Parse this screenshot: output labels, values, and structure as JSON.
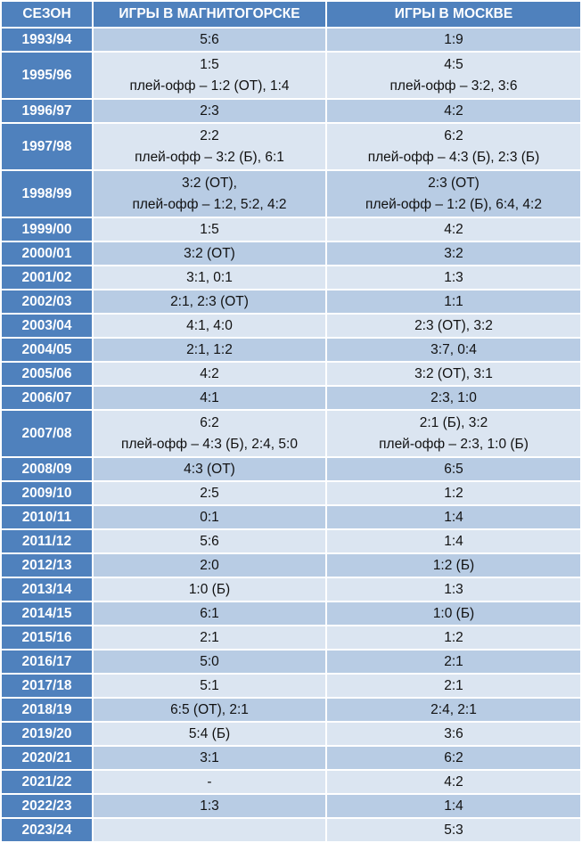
{
  "table": {
    "header": [
      "СЕЗОН",
      "ИГРЫ В МАГНИТОГОРСКЕ",
      "ИГРЫ В МОСКВЕ"
    ],
    "rows": [
      [
        "1993/94",
        [
          "5:6"
        ],
        [
          "1:9"
        ]
      ],
      [
        "1995/96",
        [
          "1:5",
          "плей-офф – 1:2 (ОТ), 1:4"
        ],
        [
          "4:5",
          "плей-офф – 3:2, 3:6"
        ]
      ],
      [
        "1996/97",
        [
          "2:3"
        ],
        [
          "4:2"
        ]
      ],
      [
        "1997/98",
        [
          "2:2",
          "плей-офф – 3:2 (Б), 6:1"
        ],
        [
          "6:2",
          "плей-офф – 4:3 (Б), 2:3 (Б)"
        ]
      ],
      [
        "1998/99",
        [
          "3:2 (ОТ),",
          "плей-офф – 1:2, 5:2, 4:2"
        ],
        [
          "2:3 (ОТ)",
          "плей-офф – 1:2 (Б), 6:4, 4:2"
        ]
      ],
      [
        "1999/00",
        [
          "1:5"
        ],
        [
          "4:2"
        ]
      ],
      [
        "2000/01",
        [
          "3:2 (ОТ)"
        ],
        [
          "3:2"
        ]
      ],
      [
        "2001/02",
        [
          "3:1, 0:1"
        ],
        [
          "1:3"
        ]
      ],
      [
        "2002/03",
        [
          "2:1, 2:3 (ОТ)"
        ],
        [
          "1:1"
        ]
      ],
      [
        "2003/04",
        [
          "4:1, 4:0"
        ],
        [
          "2:3 (ОТ), 3:2"
        ]
      ],
      [
        "2004/05",
        [
          "2:1, 1:2"
        ],
        [
          "3:7, 0:4"
        ]
      ],
      [
        "2005/06",
        [
          "4:2"
        ],
        [
          "3:2 (ОТ), 3:1"
        ]
      ],
      [
        "2006/07",
        [
          "4:1"
        ],
        [
          "2:3, 1:0"
        ]
      ],
      [
        "2007/08",
        [
          "6:2",
          "плей-офф – 4:3 (Б), 2:4, 5:0"
        ],
        [
          "2:1 (Б), 3:2",
          "плей-офф – 2:3, 1:0 (Б)"
        ]
      ],
      [
        "2008/09",
        [
          "4:3 (ОТ)"
        ],
        [
          "6:5"
        ]
      ],
      [
        "2009/10",
        [
          "2:5"
        ],
        [
          "1:2"
        ]
      ],
      [
        "2010/11",
        [
          "0:1"
        ],
        [
          "1:4"
        ]
      ],
      [
        "2011/12",
        [
          "5:6"
        ],
        [
          "1:4"
        ]
      ],
      [
        "2012/13",
        [
          "2:0"
        ],
        [
          "1:2 (Б)"
        ]
      ],
      [
        "2013/14",
        [
          "1:0 (Б)"
        ],
        [
          "1:3"
        ]
      ],
      [
        "2014/15",
        [
          "6:1"
        ],
        [
          "1:0 (Б)"
        ]
      ],
      [
        "2015/16",
        [
          "2:1"
        ],
        [
          "1:2"
        ]
      ],
      [
        "2016/17",
        [
          "5:0"
        ],
        [
          "2:1"
        ]
      ],
      [
        "2017/18",
        [
          "5:1"
        ],
        [
          "2:1"
        ]
      ],
      [
        "2018/19",
        [
          "6:5 (ОТ), 2:1"
        ],
        [
          "2:4, 2:1"
        ]
      ],
      [
        "2019/20",
        [
          "5:4 (Б)"
        ],
        [
          "3:6"
        ]
      ],
      [
        "2020/21",
        [
          "3:1"
        ],
        [
          "6:2"
        ]
      ],
      [
        "2021/22",
        [
          "-"
        ],
        [
          "4:2"
        ]
      ],
      [
        "2022/23",
        [
          "1:3"
        ],
        [
          "1:4"
        ]
      ],
      [
        "2023/24",
        [],
        [
          "5:3"
        ]
      ]
    ]
  }
}
